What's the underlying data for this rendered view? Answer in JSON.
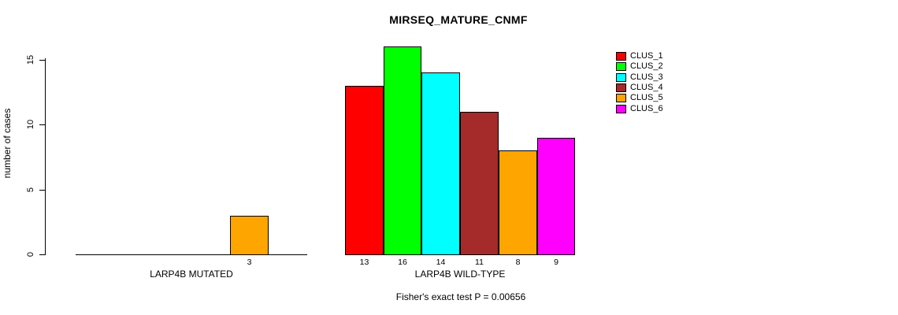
{
  "chart_data": {
    "type": "bar",
    "title": "MIRSEQ_MATURE_CNMF",
    "xlabel": "",
    "ylabel": "number of cases",
    "ylim": [
      0,
      15
    ],
    "yticks": [
      0,
      5,
      10,
      15
    ],
    "grid": false,
    "legend_position": "right-top",
    "categories": [
      "LARP4B MUTATED",
      "LARP4B WILD-TYPE"
    ],
    "series": [
      {
        "name": "CLUS_1",
        "color": "#ff0000",
        "values": [
          0,
          13
        ]
      },
      {
        "name": "CLUS_2",
        "color": "#00ff00",
        "values": [
          0,
          16
        ]
      },
      {
        "name": "CLUS_3",
        "color": "#00ffff",
        "values": [
          0,
          14
        ]
      },
      {
        "name": "CLUS_4",
        "color": "#a52a2a",
        "values": [
          0,
          11
        ]
      },
      {
        "name": "CLUS_5",
        "color": "#ffa500",
        "values": [
          3,
          8
        ]
      },
      {
        "name": "CLUS_6",
        "color": "#ff00ff",
        "values": [
          0,
          9
        ]
      }
    ],
    "bar_value_labels": [
      "3",
      "13",
      "16",
      "14",
      "11",
      "8",
      "9"
    ],
    "annotation": "Fisher's exact test P = 0.00656"
  },
  "colors": {
    "background": "#ffffff",
    "axis": "#000000",
    "bar_border": "#000000"
  }
}
